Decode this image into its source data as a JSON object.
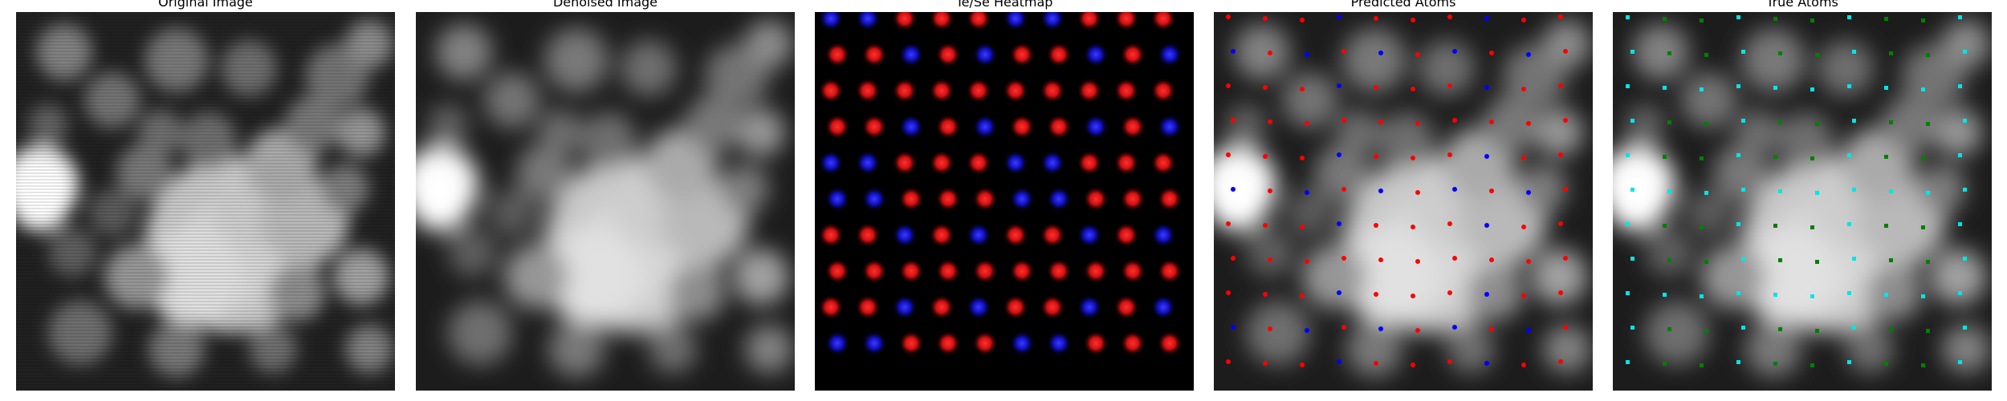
{
  "panels": [
    {
      "title": "Original Image",
      "kind": "micrograph"
    },
    {
      "title": "Denoised Image",
      "kind": "micrograph"
    },
    {
      "title": "Te/Se Heatmap",
      "kind": "heatmap"
    },
    {
      "title": "Predicted Atoms",
      "kind": "micrograph-with-atoms"
    },
    {
      "title": "True Atoms",
      "kind": "micrograph-with-atoms"
    }
  ],
  "colors": {
    "te_heatmap": "#ff2020",
    "se_heatmap": "#2020ff",
    "predicted_te": "#ff0000",
    "predicted_se": "#0000ff",
    "true_te": "#008000",
    "true_se": "#00e5e5"
  }
}
